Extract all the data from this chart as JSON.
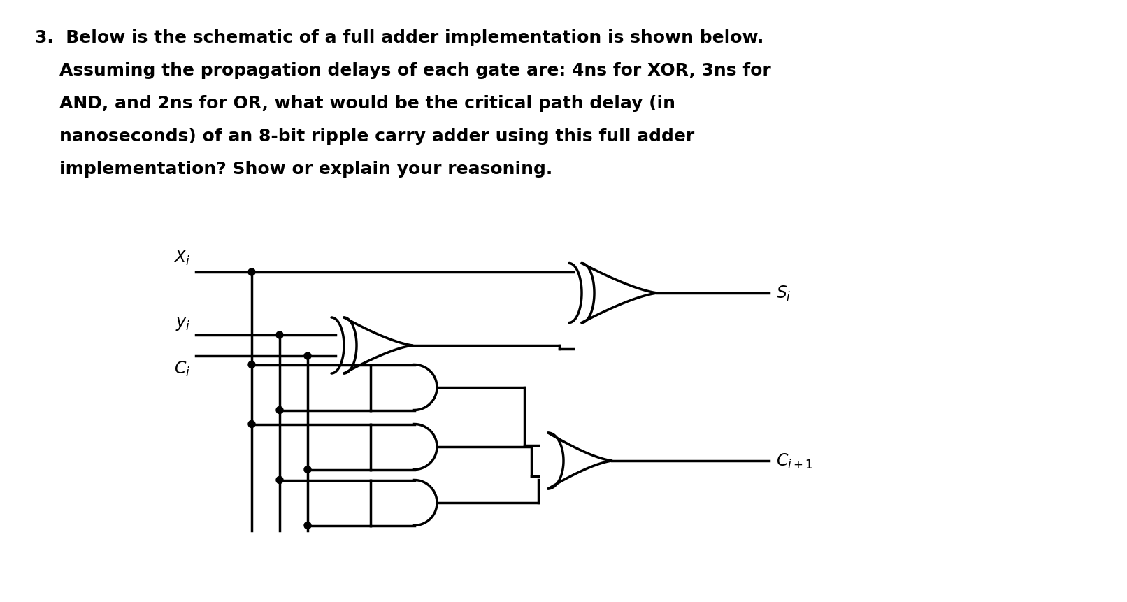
{
  "bg_color": "#ffffff",
  "line_color": "#000000",
  "lw": 2.5,
  "fig_width": 16.12,
  "fig_height": 8.62,
  "text_lines": [
    "3.  Below is the schematic of a full adder implementation is shown below.",
    "    Assuming the propagation delays of each gate are: 4ns for XOR, 3ns for",
    "    AND, and 2ns for OR, what would be the critical path delay (in",
    "    nanoseconds) of an 8-bit ripple carry adder using this full adder",
    "    implementation? Show or explain your reasoning."
  ],
  "label_Xi": "X_i",
  "label_Yi": "y_i",
  "label_Ci": "C_i",
  "label_Si": "S_i",
  "label_Cout": "C_{i+1}",
  "title_fontsize": 18,
  "label_fontsize": 17
}
